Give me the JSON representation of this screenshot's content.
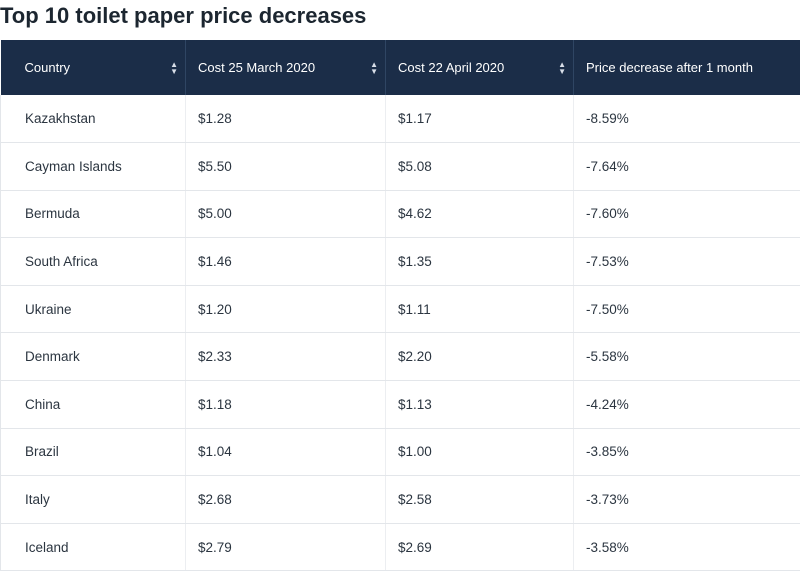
{
  "title": "Top 10 toilet paper price decreases",
  "colors": {
    "header_bg": "#1b2d48",
    "header_text": "#ffffff",
    "row_border": "#e3e6ea"
  },
  "icons": {
    "sort": "sort-updown-icon"
  },
  "chart_data": {
    "type": "table",
    "title": "Top 10 toilet paper price decreases",
    "columns": [
      "Country",
      "Cost 25 March 2020",
      "Cost 22 April 2020",
      "Price decrease after 1 month"
    ],
    "rows": [
      [
        "Kazakhstan",
        "$1.28",
        "$1.17",
        "-8.59%"
      ],
      [
        "Cayman Islands",
        "$5.50",
        "$5.08",
        "-7.64%"
      ],
      [
        "Bermuda",
        "$5.00",
        "$4.62",
        "-7.60%"
      ],
      [
        "South Africa",
        "$1.46",
        "$1.35",
        "-7.53%"
      ],
      [
        "Ukraine",
        "$1.20",
        "$1.11",
        "-7.50%"
      ],
      [
        "Denmark",
        "$2.33",
        "$2.20",
        "-5.58%"
      ],
      [
        "China",
        "$1.18",
        "$1.13",
        "-4.24%"
      ],
      [
        "Brazil",
        "$1.04",
        "$1.00",
        "-3.85%"
      ],
      [
        "Italy",
        "$2.68",
        "$2.58",
        "-3.73%"
      ],
      [
        "Iceland",
        "$2.79",
        "$2.69",
        "-3.58%"
      ]
    ]
  }
}
